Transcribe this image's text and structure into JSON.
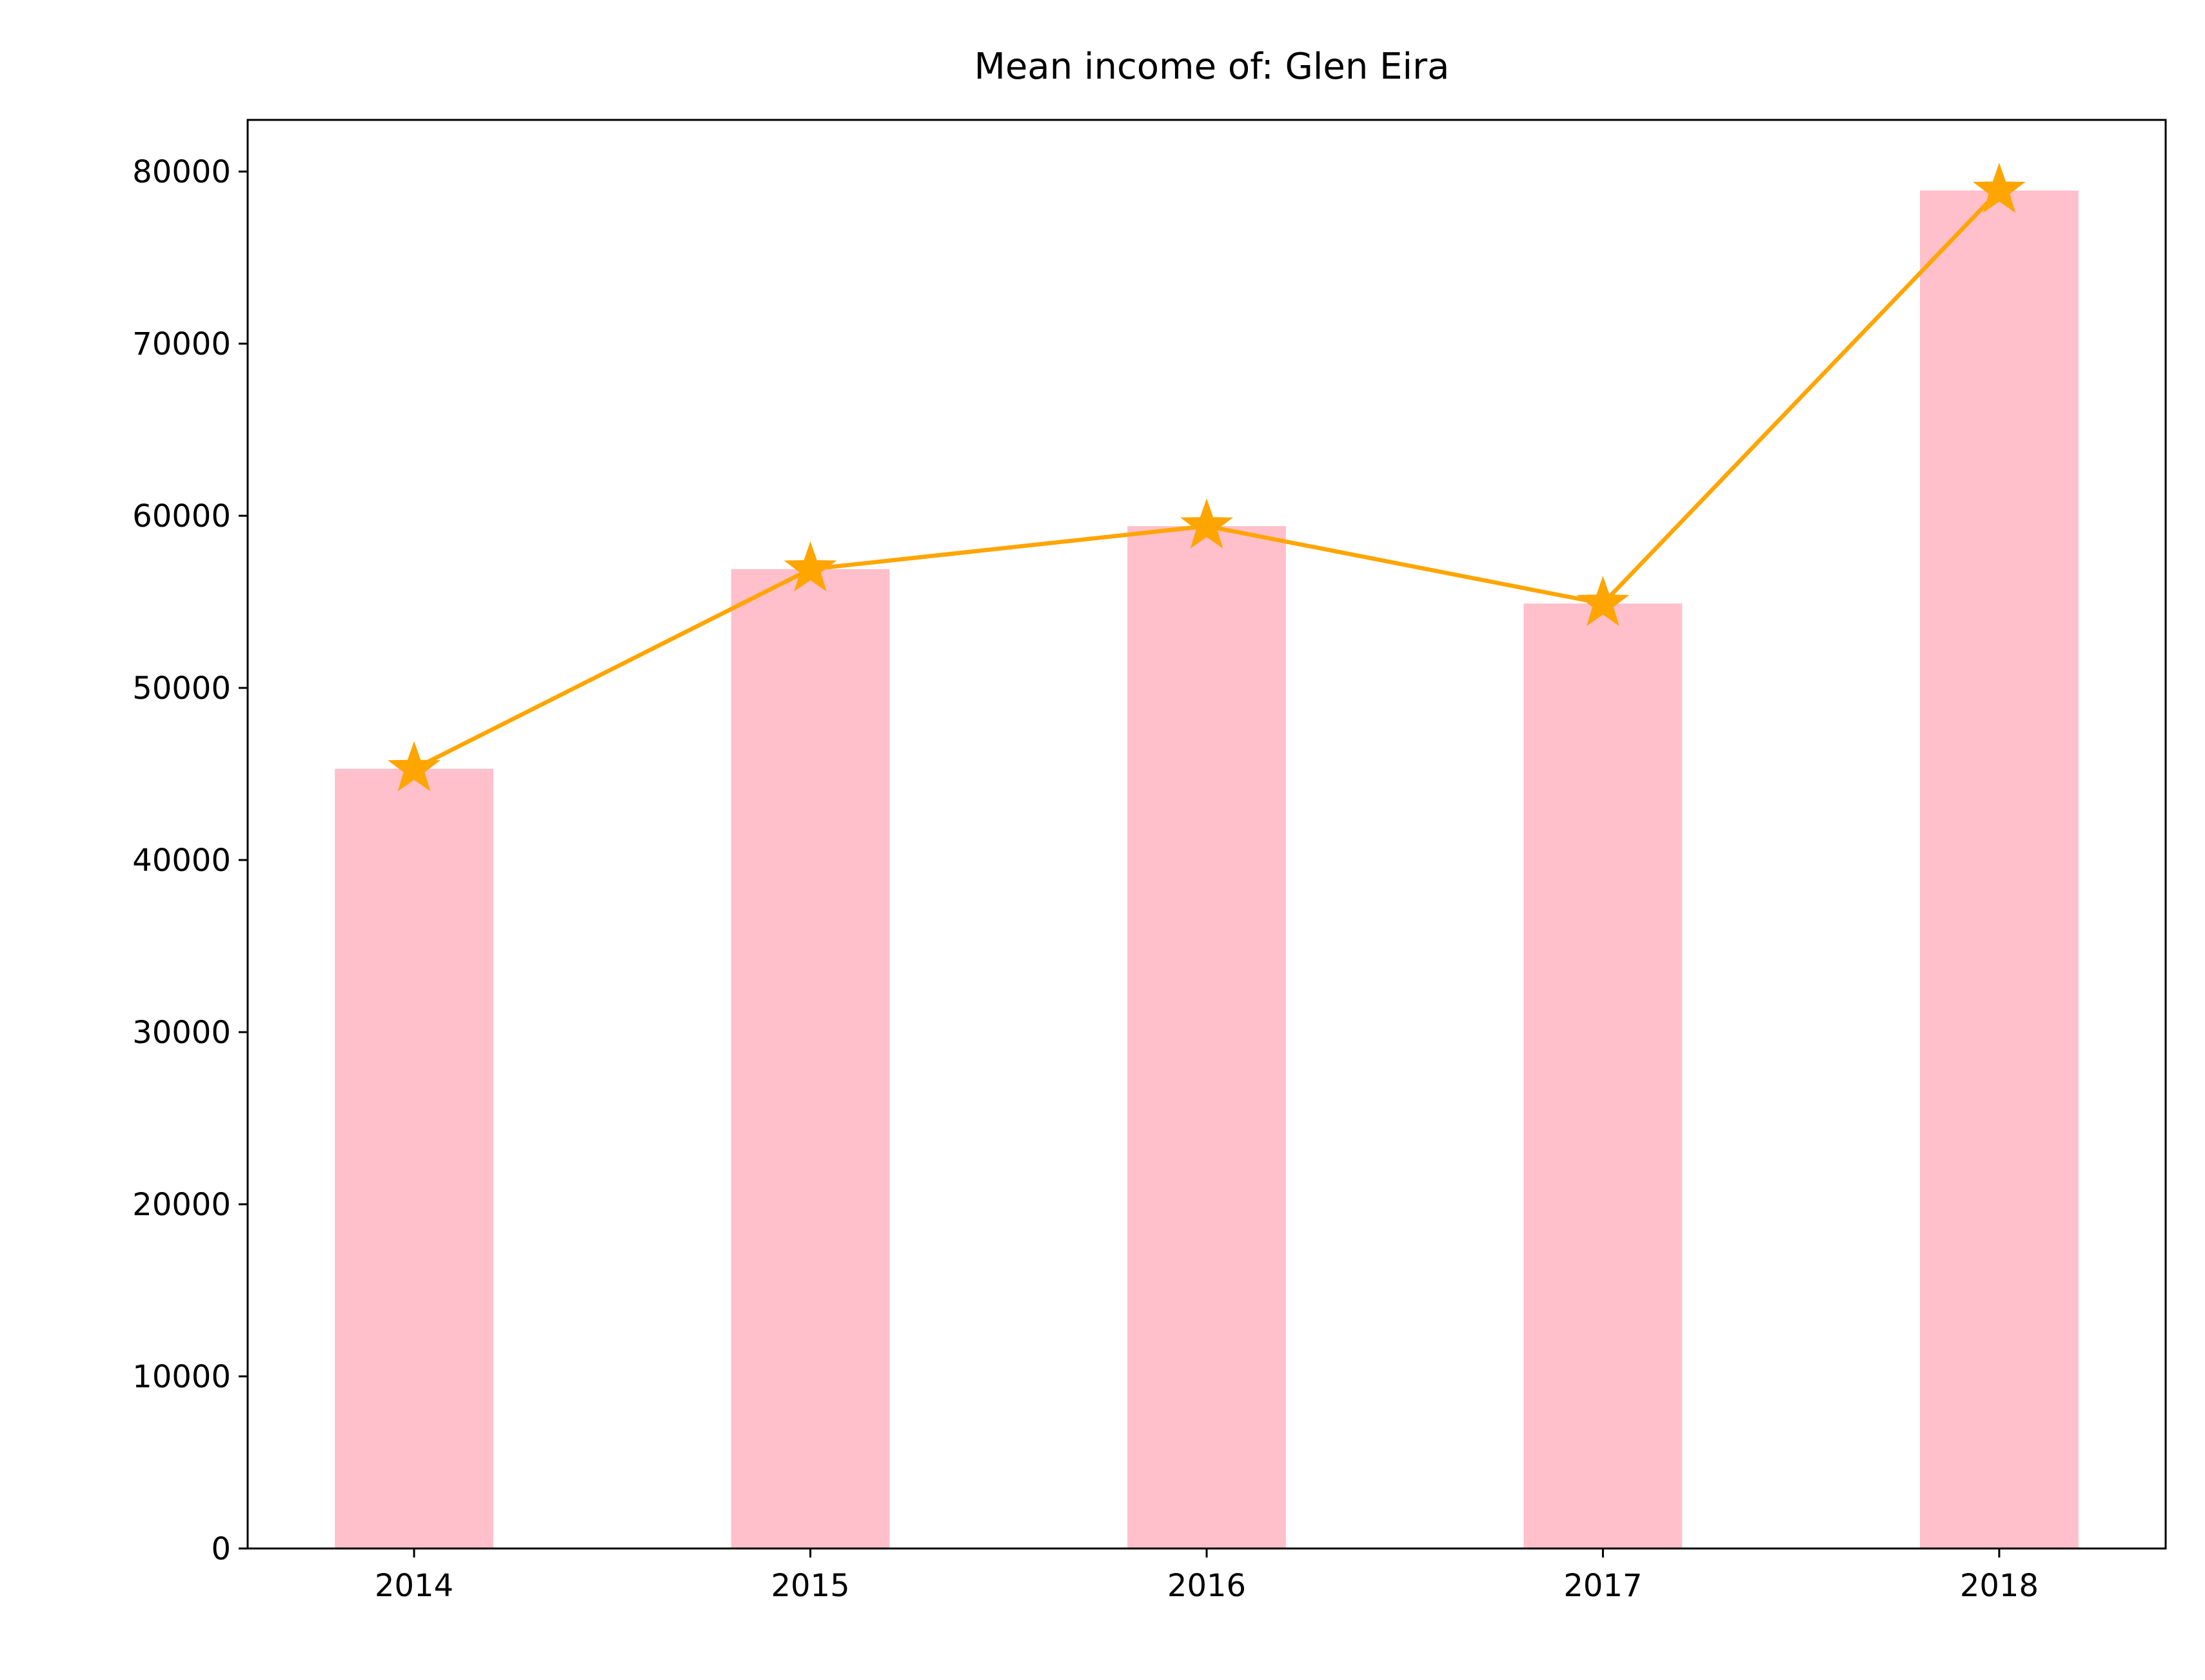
{
  "chart_data": {
    "type": "bar",
    "title": "Mean income of: Glen Eira",
    "xlabel": "",
    "ylabel": "",
    "categories": [
      "2014",
      "2015",
      "2016",
      "2017",
      "2018"
    ],
    "ylim": [
      0,
      83000
    ],
    "yticks": [
      0,
      10000,
      20000,
      30000,
      40000,
      50000,
      60000,
      70000,
      80000
    ],
    "grid": false,
    "series": [
      {
        "type": "bar",
        "values": [
          45300,
          56900,
          59400,
          54900,
          78900
        ],
        "color": "#ffc0cb"
      },
      {
        "type": "line",
        "marker": "star",
        "values": [
          45300,
          56900,
          59400,
          54900,
          78900
        ],
        "color": "#ffa500"
      }
    ]
  }
}
